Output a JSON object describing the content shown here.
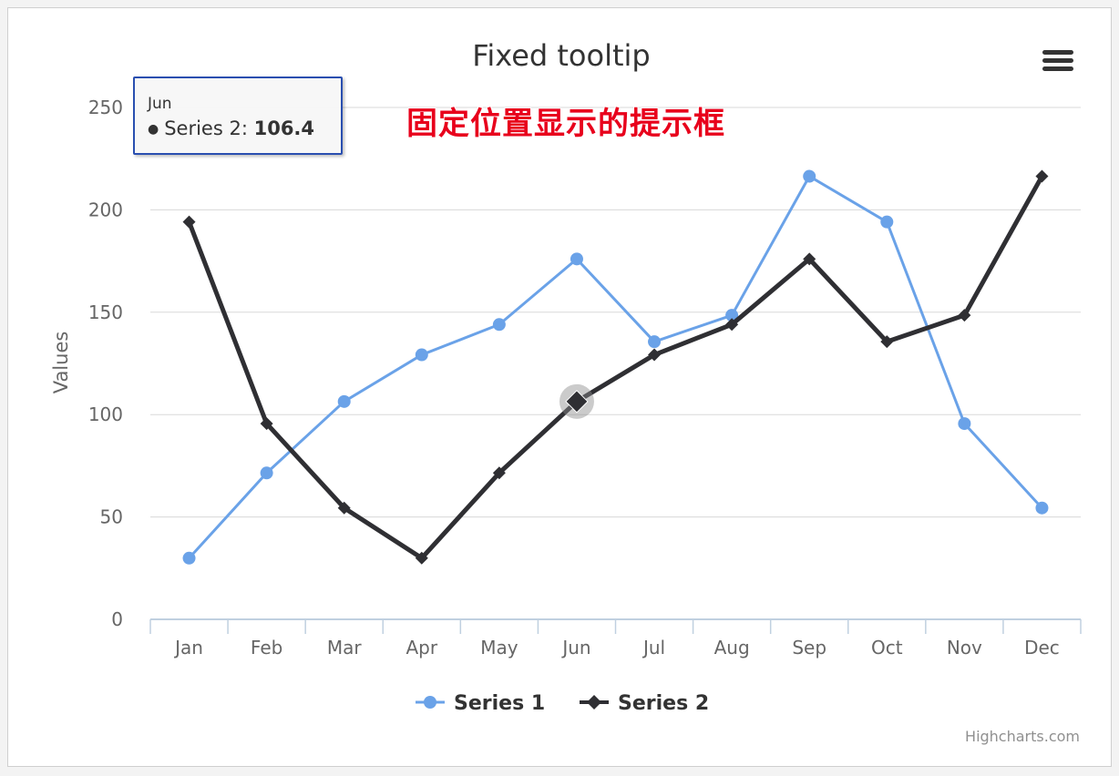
{
  "chart_data": {
    "type": "line",
    "title": "Fixed tooltip",
    "xlabel": "",
    "ylabel": "Values",
    "categories": [
      "Jan",
      "Feb",
      "Mar",
      "Apr",
      "May",
      "Jun",
      "Jul",
      "Aug",
      "Sep",
      "Oct",
      "Nov",
      "Dec"
    ],
    "ylim": [
      0,
      250
    ],
    "yticks": [
      0,
      50,
      100,
      150,
      200,
      250
    ],
    "grid": true,
    "legend": "bottom-center",
    "series": [
      {
        "name": "Series 1",
        "color": "#6aa2e8",
        "marker": "circle",
        "values": [
          29.9,
          71.5,
          106.4,
          129.2,
          144.0,
          176.0,
          135.6,
          148.5,
          216.4,
          194.1,
          95.6,
          54.4
        ]
      },
      {
        "name": "Series 2",
        "color": "#2f2f33",
        "marker": "diamond",
        "values": [
          194.1,
          95.6,
          54.4,
          29.9,
          71.5,
          106.4,
          129.2,
          144.0,
          176.0,
          135.6,
          148.5,
          216.4
        ]
      }
    ],
    "credit": "Highcharts.com"
  },
  "tooltip": {
    "header": "Jun",
    "series_label": "Series 2: ",
    "value": "106.4",
    "bullet": "●"
  },
  "annotation": "固定位置显示的提示框",
  "menu": {
    "icon": "hamburger-menu-icon"
  }
}
